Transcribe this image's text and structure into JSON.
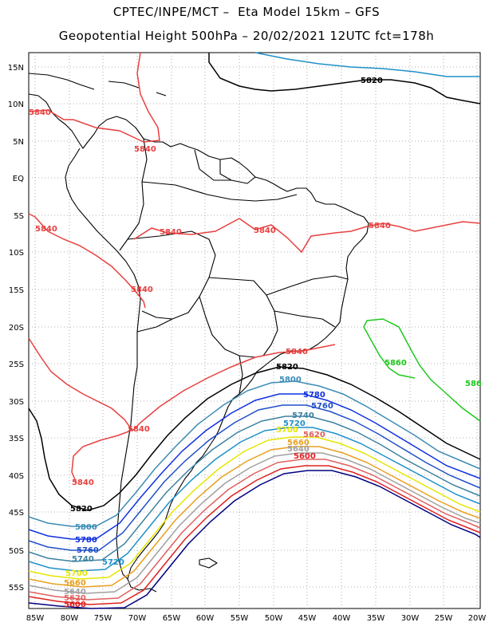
{
  "header": {
    "line1": "CPTEC/INPE/MCT –  Eta Model 15km – GFS",
    "line2": "Geopotential Height 500hPa – 20/02/2021 12UTC fct=178h"
  },
  "axes": {
    "lon_labels": [
      "85W",
      "80W",
      "75W",
      "70W",
      "65W",
      "60W",
      "55W",
      "50W",
      "45W",
      "40W",
      "35W",
      "30W",
      "25W",
      "20W"
    ],
    "lat_labels": [
      "15N",
      "10N",
      "5N",
      "EQ",
      "5S",
      "10S",
      "15S",
      "20S",
      "25S",
      "30S",
      "35S",
      "40S",
      "45S",
      "50S",
      "55S"
    ],
    "lon_range": [
      -85.5,
      -19.5
    ],
    "lat_range": [
      16.5,
      -58.0
    ],
    "grid": "dotted"
  },
  "colors": {
    "c5580": "#000080",
    "c5600": "#e02020",
    "c5620": "#e06060",
    "c5640": "#a0a0a0",
    "c5660": "#e8a020",
    "c5700": "#e6e600",
    "c5720": "#1e90c8",
    "c5740": "#3c82a0",
    "c5760": "#2050c8",
    "c5780": "#1030e0",
    "c5800": "#3c8cb4",
    "c5820": "#000000",
    "c5840": "#e84040",
    "c5860": "#20c820",
    "land": "#000000"
  },
  "contours": {
    "c5580": "5580",
    "c5600": "5600",
    "c5620": "5620",
    "c5640": "5640",
    "c5660": "5660",
    "c5700": "5700",
    "c5720": "5720",
    "c5740": "5740",
    "c5760": "5760",
    "c5780": "5780",
    "c5800": "5800",
    "c5820": "5820",
    "c5840": "5840",
    "c5860": "5860"
  },
  "contour_label_texts": {
    "l5860_a": "5860",
    "l5860_b": "586"
  }
}
